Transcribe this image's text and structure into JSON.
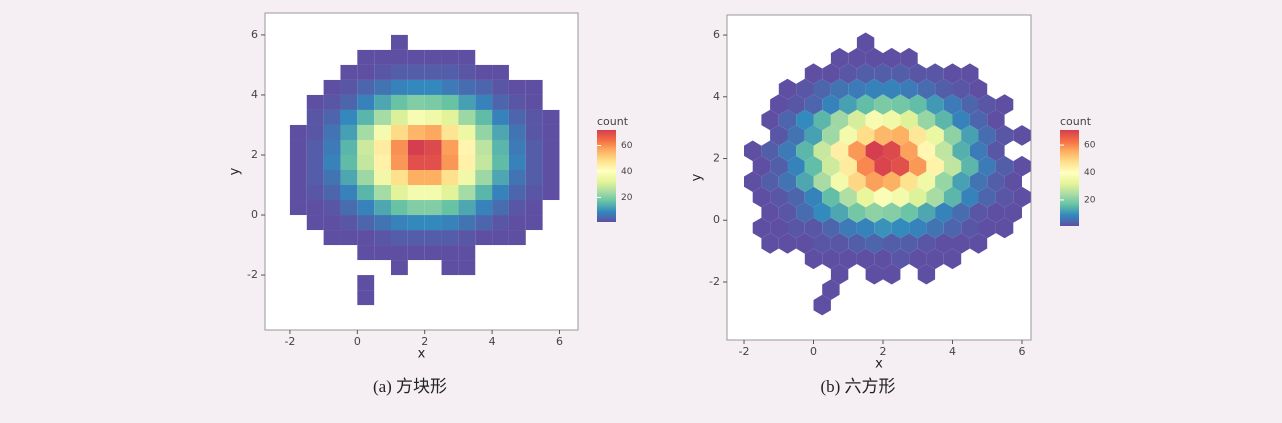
{
  "chart_data": [
    {
      "type": "heatmap",
      "caption": "(a) 方块形",
      "x_label": "x",
      "y_label": "y",
      "legend_title": "count",
      "xlim": [
        -2.74,
        6.55
      ],
      "ylim": [
        -3.83,
        6.73
      ],
      "xticks": [
        -2,
        0,
        2,
        4,
        6
      ],
      "yticks": [
        -2,
        0,
        2,
        4,
        6
      ],
      "legend_ticks": [
        20,
        40,
        60
      ],
      "colors": [
        "#5e4fa2",
        "#3288bd",
        "#66c2a5",
        "#abdda4",
        "#e6f598",
        "#ffffbf",
        "#fee08b",
        "#fdae61",
        "#f46d43",
        "#d53e4f"
      ],
      "x": [
        -1.75,
        -1.25,
        -0.75,
        -0.25,
        0.25,
        0.75,
        1.25,
        1.75,
        2.25,
        2.75,
        3.25,
        3.75,
        4.25,
        4.75,
        5.25,
        5.75
      ],
      "y": [
        -2.75,
        -2.25,
        -1.75,
        -1.25,
        -0.75,
        -0.25,
        0.25,
        0.75,
        1.25,
        1.75,
        2.25,
        2.75,
        3.25,
        3.75,
        4.25,
        4.75,
        5.25,
        5.75
      ],
      "values": [
        [
          null,
          null,
          null,
          null,
          1,
          null,
          null,
          null,
          null,
          null,
          null,
          null,
          null,
          null,
          null,
          null
        ],
        [
          null,
          null,
          null,
          null,
          1,
          null,
          null,
          null,
          null,
          null,
          null,
          null,
          null,
          null,
          null,
          null
        ],
        [
          null,
          null,
          null,
          null,
          null,
          null,
          1,
          null,
          null,
          1,
          1,
          null,
          null,
          null,
          null,
          null
        ],
        [
          null,
          null,
          null,
          null,
          1,
          1,
          1,
          1,
          1,
          1,
          1,
          null,
          null,
          null,
          null,
          null
        ],
        [
          null,
          null,
          1,
          1,
          1,
          2,
          3,
          3,
          3,
          3,
          2,
          1,
          1,
          1,
          null,
          null
        ],
        [
          null,
          1,
          1,
          2,
          4,
          6,
          8,
          9,
          9,
          8,
          6,
          4,
          2,
          1,
          1,
          null
        ],
        [
          1,
          1,
          2,
          5,
          8,
          13,
          17,
          20,
          20,
          17,
          13,
          8,
          5,
          2,
          1,
          null
        ],
        [
          1,
          2,
          4,
          8,
          15,
          24,
          32,
          37,
          37,
          32,
          24,
          15,
          8,
          4,
          2,
          1
        ],
        [
          1,
          3,
          6,
          13,
          23,
          36,
          48,
          56,
          56,
          48,
          36,
          23,
          13,
          6,
          3,
          1
        ],
        [
          1,
          3,
          8,
          16,
          28,
          44,
          59,
          69,
          69,
          59,
          44,
          28,
          16,
          8,
          3,
          1
        ],
        [
          1,
          3,
          7,
          15,
          29,
          45,
          60,
          72,
          70,
          58,
          43,
          27,
          15,
          7,
          3,
          1
        ],
        [
          1,
          2,
          6,
          12,
          24,
          37,
          49,
          55,
          57,
          47,
          35,
          22,
          13,
          6,
          2,
          1
        ],
        [
          null,
          2,
          4,
          9,
          15,
          24,
          31,
          38,
          36,
          32,
          23,
          16,
          8,
          4,
          2,
          1
        ],
        [
          null,
          1,
          2,
          4,
          8,
          13,
          17,
          20,
          19,
          17,
          12,
          8,
          4,
          2,
          1,
          null
        ],
        [
          null,
          null,
          1,
          2,
          4,
          6,
          8,
          9,
          9,
          7,
          5,
          4,
          2,
          1,
          1,
          null
        ],
        [
          null,
          null,
          null,
          1,
          1,
          2,
          3,
          3,
          3,
          3,
          2,
          1,
          1,
          null,
          null,
          null
        ],
        [
          null,
          null,
          null,
          null,
          1,
          1,
          1,
          1,
          1,
          1,
          1,
          null,
          null,
          null,
          null,
          null
        ],
        [
          null,
          null,
          null,
          null,
          null,
          null,
          1,
          null,
          null,
          null,
          null,
          null,
          null,
          null,
          null,
          null
        ]
      ]
    },
    {
      "type": "hexbin",
      "caption": "(b) 六方形",
      "x_label": "x",
      "y_label": "y",
      "legend_title": "count",
      "xlim": [
        -2.49,
        6.26
      ],
      "ylim": [
        -3.88,
        6.65
      ],
      "xticks": [
        -2,
        0,
        2,
        4,
        6
      ],
      "yticks": [
        -2,
        0,
        2,
        4,
        6
      ],
      "legend_ticks": [
        20,
        40,
        60
      ],
      "colors": [
        "#5e4fa2",
        "#3288bd",
        "#66c2a5",
        "#abdda4",
        "#e6f598",
        "#ffffbf",
        "#fee08b",
        "#fdae61",
        "#f46d43",
        "#d53e4f"
      ],
      "x": [
        -1.75,
        -1.25,
        -0.75,
        -0.25,
        0.25,
        0.75,
        1.25,
        1.75,
        2.25,
        2.75,
        3.25,
        3.75,
        4.25,
        4.75,
        5.25,
        5.75
      ],
      "y": [
        -2.75,
        -2.25,
        -1.75,
        -1.25,
        -0.75,
        -0.25,
        0.25,
        0.75,
        1.25,
        1.75,
        2.25,
        2.75,
        3.25,
        3.75,
        4.25,
        4.75,
        5.25,
        5.75
      ],
      "values": [
        [
          null,
          null,
          null,
          null,
          1,
          null,
          null,
          null,
          null,
          null,
          null,
          null,
          null,
          null,
          null,
          null
        ],
        [
          null,
          null,
          null,
          null,
          1,
          null,
          null,
          null,
          null,
          null,
          null,
          null,
          null,
          null,
          null,
          null
        ],
        [
          null,
          null,
          null,
          null,
          null,
          1,
          null,
          1,
          1,
          null,
          1,
          null,
          null,
          null,
          null,
          null
        ],
        [
          null,
          null,
          null,
          1,
          1,
          1,
          1,
          1,
          2,
          1,
          1,
          1,
          null,
          null,
          null,
          null
        ],
        [
          null,
          1,
          1,
          1,
          2,
          2,
          3,
          4,
          3,
          3,
          2,
          1,
          1,
          1,
          null,
          null
        ],
        [
          1,
          1,
          2,
          2,
          4,
          7,
          8,
          10,
          9,
          8,
          6,
          4,
          2,
          1,
          1,
          null
        ],
        [
          null,
          1,
          2,
          5,
          9,
          13,
          18,
          21,
          20,
          17,
          13,
          8,
          5,
          2,
          1,
          1
        ],
        [
          1,
          2,
          4,
          8,
          16,
          25,
          33,
          38,
          36,
          31,
          24,
          15,
          8,
          4,
          2,
          1
        ],
        [
          1,
          3,
          6,
          13,
          24,
          36,
          49,
          57,
          55,
          47,
          35,
          22,
          12,
          6,
          3,
          1
        ],
        [
          1,
          3,
          8,
          16,
          29,
          45,
          60,
          70,
          68,
          58,
          43,
          27,
          15,
          7,
          3,
          1
        ],
        [
          1,
          3,
          7,
          15,
          28,
          44,
          58,
          71,
          69,
          57,
          42,
          27,
          14,
          7,
          2,
          null
        ],
        [
          null,
          2,
          6,
          12,
          23,
          36,
          48,
          54,
          55,
          46,
          34,
          21,
          12,
          5,
          2,
          1
        ],
        [
          null,
          1,
          4,
          9,
          15,
          23,
          30,
          37,
          35,
          31,
          22,
          15,
          8,
          4,
          1,
          null
        ],
        [
          null,
          1,
          2,
          4,
          8,
          12,
          16,
          19,
          18,
          16,
          11,
          7,
          4,
          2,
          1,
          null
        ],
        [
          null,
          null,
          1,
          2,
          4,
          6,
          7,
          8,
          8,
          7,
          5,
          3,
          2,
          1,
          null,
          null
        ],
        [
          null,
          null,
          null,
          1,
          1,
          2,
          3,
          3,
          3,
          2,
          2,
          1,
          1,
          null,
          null,
          null
        ],
        [
          null,
          null,
          null,
          null,
          null,
          1,
          1,
          1,
          1,
          1,
          null,
          null,
          null,
          null,
          null,
          null
        ],
        [
          null,
          null,
          null,
          null,
          null,
          null,
          1,
          null,
          null,
          null,
          null,
          null,
          null,
          null,
          null,
          null
        ]
      ]
    }
  ]
}
